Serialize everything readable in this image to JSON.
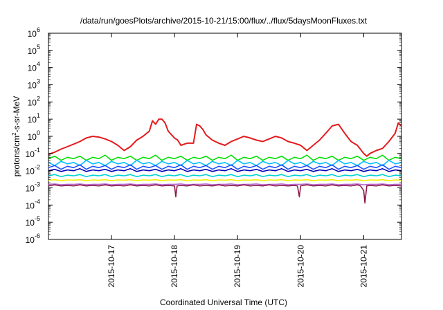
{
  "chart_data": {
    "type": "line",
    "title": "/data/run/goesPlots/archive/2015-10-21/15:00/flux/../flux/5daysMoonFluxes.txt",
    "xlabel": "Coordinated Universal Time (UTC)",
    "ylabel": {
      "pre": "protons/cm",
      "sup": "2",
      "post": "-s-sr-MeV"
    },
    "y_scale": "log",
    "ylim": [
      1e-06,
      1000000.0
    ],
    "y_ticks": [
      {
        "value": 1e-06,
        "base": "10",
        "exp": "-6"
      },
      {
        "value": 1e-05,
        "base": "10",
        "exp": "-5"
      },
      {
        "value": 0.0001,
        "base": "10",
        "exp": "-4"
      },
      {
        "value": 0.001,
        "base": "10",
        "exp": "-3"
      },
      {
        "value": 0.01,
        "base": "10",
        "exp": "-2"
      },
      {
        "value": 0.1,
        "base": "10",
        "exp": "-1"
      },
      {
        "value": 1,
        "base": "10",
        "exp": "0"
      },
      {
        "value": 10,
        "base": "10",
        "exp": "1"
      },
      {
        "value": 100,
        "base": "10",
        "exp": "2"
      },
      {
        "value": 1000,
        "base": "10",
        "exp": "3"
      },
      {
        "value": 10000,
        "base": "10",
        "exp": "4"
      },
      {
        "value": 100000,
        "base": "10",
        "exp": "5"
      },
      {
        "value": 1000000,
        "base": "10",
        "exp": "6"
      }
    ],
    "xlim": [
      0,
      5.6
    ],
    "x_ticks": [
      {
        "value": 1,
        "label": "2015-10-17"
      },
      {
        "value": 2,
        "label": "2015-10-18"
      },
      {
        "value": 3,
        "label": "2015-10-19"
      },
      {
        "value": 4,
        "label": "2015-10-20"
      },
      {
        "value": 5,
        "label": "2015-10-21"
      }
    ],
    "grid": false,
    "series": [
      {
        "color": "#e41a1c",
        "x": [
          0,
          0.1,
          0.2,
          0.3,
          0.4,
          0.5,
          0.6,
          0.7,
          0.8,
          0.9,
          1.0,
          1.1,
          1.2,
          1.3,
          1.4,
          1.5,
          1.6,
          1.65,
          1.7,
          1.75,
          1.8,
          1.85,
          1.9,
          2.0,
          2.05,
          2.1,
          2.2,
          2.3,
          2.35,
          2.4,
          2.45,
          2.5,
          2.6,
          2.7,
          2.8,
          2.9,
          3.0,
          3.1,
          3.2,
          3.3,
          3.4,
          3.5,
          3.6,
          3.7,
          3.8,
          3.9,
          4.0,
          4.1,
          4.2,
          4.3,
          4.4,
          4.5,
          4.6,
          4.7,
          4.8,
          4.9,
          5.0,
          5.05,
          5.1,
          5.2,
          5.3,
          5.4,
          5.5,
          5.55,
          5.6
        ],
        "y": [
          0.09,
          0.12,
          0.18,
          0.25,
          0.35,
          0.5,
          0.8,
          1.0,
          0.9,
          0.7,
          0.5,
          0.3,
          0.15,
          0.25,
          0.6,
          1.0,
          2.0,
          8.0,
          5.0,
          10.0,
          10.0,
          6.0,
          2.0,
          0.8,
          0.6,
          0.3,
          0.4,
          0.4,
          5.0,
          4.0,
          2.5,
          1.2,
          0.6,
          0.4,
          0.3,
          0.5,
          0.7,
          1.0,
          0.8,
          0.6,
          0.5,
          0.7,
          1.0,
          0.8,
          0.5,
          0.4,
          0.3,
          0.15,
          0.3,
          0.6,
          1.5,
          4.0,
          5.0,
          1.5,
          0.5,
          0.3,
          0.1,
          0.07,
          0.1,
          0.15,
          0.2,
          0.5,
          1.5,
          6.0,
          4.0
        ]
      },
      {
        "color": "#00e000",
        "x": [
          0,
          0.1,
          0.2,
          0.3,
          0.4,
          0.5,
          0.6,
          0.7,
          0.8,
          0.9,
          1.0,
          1.1,
          1.2,
          1.3,
          1.4,
          1.5,
          1.6,
          1.7,
          1.8,
          1.9,
          2.0,
          2.1,
          2.2,
          2.3,
          2.4,
          2.5,
          2.6,
          2.7,
          2.8,
          2.9,
          3.0,
          3.1,
          3.2,
          3.3,
          3.4,
          3.5,
          3.6,
          3.7,
          3.8,
          3.9,
          4.0,
          4.1,
          4.2,
          4.3,
          4.4,
          4.5,
          4.6,
          4.7,
          4.8,
          4.9,
          5.0,
          5.1,
          5.2,
          5.3,
          5.4,
          5.5,
          5.6
        ],
        "y": [
          0.05,
          0.07,
          0.04,
          0.06,
          0.05,
          0.07,
          0.04,
          0.06,
          0.05,
          0.08,
          0.04,
          0.06,
          0.05,
          0.07,
          0.04,
          0.06,
          0.05,
          0.08,
          0.04,
          0.06,
          0.05,
          0.07,
          0.04,
          0.06,
          0.05,
          0.07,
          0.04,
          0.06,
          0.05,
          0.08,
          0.04,
          0.06,
          0.05,
          0.07,
          0.04,
          0.06,
          0.05,
          0.07,
          0.04,
          0.06,
          0.05,
          0.08,
          0.04,
          0.06,
          0.05,
          0.07,
          0.04,
          0.06,
          0.05,
          0.07,
          0.04,
          0.06,
          0.05,
          0.08,
          0.04,
          0.06,
          0.05
        ]
      },
      {
        "color": "#00bfff",
        "x": [
          0,
          0.1,
          0.2,
          0.3,
          0.4,
          0.5,
          0.6,
          0.7,
          0.8,
          0.9,
          1.0,
          1.1,
          1.2,
          1.3,
          1.4,
          1.5,
          1.6,
          1.7,
          1.8,
          1.9,
          2.0,
          2.1,
          2.2,
          2.3,
          2.4,
          2.5,
          2.6,
          2.7,
          2.8,
          2.9,
          3.0,
          3.1,
          3.2,
          3.3,
          3.4,
          3.5,
          3.6,
          3.7,
          3.8,
          3.9,
          4.0,
          4.1,
          4.2,
          4.3,
          4.4,
          4.5,
          4.6,
          4.7,
          4.8,
          4.9,
          5.0,
          5.1,
          5.2,
          5.3,
          5.4,
          5.5,
          5.6
        ],
        "y": [
          0.03,
          0.02,
          0.035,
          0.025,
          0.03,
          0.02,
          0.04,
          0.025,
          0.03,
          0.02,
          0.035,
          0.025,
          0.03,
          0.02,
          0.04,
          0.025,
          0.03,
          0.02,
          0.035,
          0.025,
          0.03,
          0.02,
          0.04,
          0.025,
          0.03,
          0.02,
          0.035,
          0.025,
          0.03,
          0.02,
          0.04,
          0.025,
          0.03,
          0.02,
          0.035,
          0.025,
          0.03,
          0.02,
          0.04,
          0.025,
          0.03,
          0.02,
          0.035,
          0.025,
          0.03,
          0.02,
          0.04,
          0.025,
          0.03,
          0.02,
          0.035,
          0.025,
          0.03,
          0.02,
          0.04,
          0.025,
          0.03
        ]
      },
      {
        "color": "#1e50ff",
        "x": [
          0,
          0.1,
          0.2,
          0.3,
          0.4,
          0.5,
          0.6,
          0.7,
          0.8,
          0.9,
          1.0,
          1.1,
          1.2,
          1.3,
          1.4,
          1.5,
          1.6,
          1.7,
          1.8,
          1.9,
          2.0,
          2.1,
          2.2,
          2.3,
          2.4,
          2.5,
          2.6,
          2.7,
          2.8,
          2.9,
          3.0,
          3.1,
          3.2,
          3.3,
          3.4,
          3.5,
          3.6,
          3.7,
          3.8,
          3.9,
          4.0,
          4.1,
          4.2,
          4.3,
          4.4,
          4.5,
          4.6,
          4.7,
          4.8,
          4.9,
          5.0,
          5.1,
          5.2,
          5.3,
          5.4,
          5.5,
          5.6
        ],
        "y": [
          0.015,
          0.02,
          0.012,
          0.018,
          0.015,
          0.022,
          0.012,
          0.018,
          0.015,
          0.02,
          0.012,
          0.018,
          0.015,
          0.022,
          0.012,
          0.018,
          0.015,
          0.02,
          0.012,
          0.018,
          0.015,
          0.022,
          0.012,
          0.018,
          0.015,
          0.02,
          0.012,
          0.018,
          0.015,
          0.022,
          0.012,
          0.018,
          0.015,
          0.02,
          0.012,
          0.018,
          0.015,
          0.022,
          0.012,
          0.018,
          0.015,
          0.02,
          0.012,
          0.018,
          0.015,
          0.022,
          0.012,
          0.018,
          0.015,
          0.02,
          0.012,
          0.018,
          0.015,
          0.022,
          0.012,
          0.018,
          0.015
        ]
      },
      {
        "color": "#0000b4",
        "x": [
          0,
          0.1,
          0.2,
          0.3,
          0.4,
          0.5,
          0.6,
          0.7,
          0.8,
          0.9,
          1.0,
          1.1,
          1.2,
          1.3,
          1.4,
          1.5,
          1.6,
          1.7,
          1.8,
          1.9,
          2.0,
          2.1,
          2.2,
          2.3,
          2.4,
          2.5,
          2.6,
          2.7,
          2.8,
          2.9,
          3.0,
          3.1,
          3.2,
          3.3,
          3.4,
          3.5,
          3.6,
          3.7,
          3.8,
          3.9,
          4.0,
          4.1,
          4.2,
          4.3,
          4.4,
          4.5,
          4.6,
          4.7,
          4.8,
          4.9,
          5.0,
          5.1,
          5.2,
          5.3,
          5.4,
          5.5,
          5.6
        ],
        "y": [
          0.01,
          0.012,
          0.009,
          0.011,
          0.01,
          0.013,
          0.009,
          0.011,
          0.01,
          0.012,
          0.009,
          0.011,
          0.01,
          0.013,
          0.009,
          0.011,
          0.01,
          0.012,
          0.009,
          0.011,
          0.01,
          0.013,
          0.009,
          0.011,
          0.01,
          0.012,
          0.009,
          0.011,
          0.01,
          0.013,
          0.009,
          0.011,
          0.01,
          0.012,
          0.009,
          0.011,
          0.01,
          0.013,
          0.009,
          0.011,
          0.01,
          0.012,
          0.009,
          0.011,
          0.01,
          0.013,
          0.009,
          0.011,
          0.01,
          0.012,
          0.009,
          0.011,
          0.01,
          0.013,
          0.009,
          0.011,
          0.01
        ]
      },
      {
        "color": "#00d2d2",
        "x": [
          0,
          0.1,
          0.2,
          0.3,
          0.4,
          0.5,
          0.6,
          0.7,
          0.8,
          0.9,
          1.0,
          1.1,
          1.2,
          1.3,
          1.4,
          1.5,
          1.6,
          1.7,
          1.8,
          1.9,
          2.0,
          2.1,
          2.2,
          2.3,
          2.4,
          2.5,
          2.6,
          2.7,
          2.8,
          2.9,
          3.0,
          3.1,
          3.2,
          3.3,
          3.4,
          3.5,
          3.6,
          3.7,
          3.8,
          3.9,
          4.0,
          4.1,
          4.2,
          4.3,
          4.4,
          4.5,
          4.6,
          4.7,
          4.8,
          4.9,
          5.0,
          5.1,
          5.2,
          5.3,
          5.4,
          5.5,
          5.6
        ],
        "y": [
          0.005,
          0.006,
          0.0045,
          0.0055,
          0.005,
          0.006,
          0.0045,
          0.0055,
          0.005,
          0.006,
          0.0045,
          0.0055,
          0.005,
          0.006,
          0.0045,
          0.0055,
          0.005,
          0.006,
          0.0045,
          0.0055,
          0.005,
          0.006,
          0.0045,
          0.0055,
          0.005,
          0.006,
          0.0045,
          0.0055,
          0.005,
          0.006,
          0.0045,
          0.0055,
          0.005,
          0.006,
          0.0045,
          0.0055,
          0.005,
          0.006,
          0.0045,
          0.0055,
          0.005,
          0.006,
          0.0045,
          0.0055,
          0.005,
          0.006,
          0.0045,
          0.0055,
          0.005,
          0.006,
          0.0045,
          0.0055,
          0.005,
          0.006,
          0.0045,
          0.0055,
          0.005
        ]
      },
      {
        "color": "#f0f000",
        "x": [
          0,
          0.1,
          0.2,
          0.3,
          0.4,
          0.5,
          0.6,
          0.7,
          0.8,
          0.9,
          1.0,
          1.1,
          1.2,
          1.3,
          1.4,
          1.5,
          1.6,
          1.7,
          1.8,
          1.9,
          2.0,
          2.1,
          2.2,
          2.3,
          2.4,
          2.5,
          2.6,
          2.7,
          2.8,
          2.9,
          3.0,
          3.1,
          3.2,
          3.3,
          3.4,
          3.5,
          3.6,
          3.7,
          3.8,
          3.9,
          4.0,
          4.1,
          4.2,
          4.3,
          4.4,
          4.5,
          4.6,
          4.7,
          4.8,
          4.9,
          5.0,
          5.1,
          5.2,
          5.3,
          5.4,
          5.5,
          5.6
        ],
        "y": [
          0.0028,
          0.003,
          0.0026,
          0.0029,
          0.0028,
          0.003,
          0.0026,
          0.0029,
          0.0028,
          0.003,
          0.0026,
          0.0029,
          0.0028,
          0.003,
          0.0026,
          0.0029,
          0.0028,
          0.003,
          0.0026,
          0.0029,
          0.0028,
          0.003,
          0.0026,
          0.0029,
          0.0028,
          0.003,
          0.0026,
          0.0029,
          0.0028,
          0.003,
          0.0026,
          0.0029,
          0.0028,
          0.003,
          0.0026,
          0.0029,
          0.0028,
          0.003,
          0.0026,
          0.0029,
          0.0028,
          0.003,
          0.0026,
          0.0029,
          0.0028,
          0.003,
          0.0026,
          0.0029,
          0.0028,
          0.003,
          0.0026,
          0.0029,
          0.0028,
          0.003,
          0.0026,
          0.0029,
          0.0028
        ]
      },
      {
        "color": "#b86ad0",
        "x": [
          0,
          0.1,
          0.2,
          0.3,
          0.4,
          0.5,
          0.6,
          0.7,
          0.8,
          0.9,
          1.0,
          1.1,
          1.2,
          1.3,
          1.4,
          1.5,
          1.6,
          1.7,
          1.8,
          1.9,
          2.0,
          2.1,
          2.2,
          2.3,
          2.4,
          2.5,
          2.6,
          2.7,
          2.8,
          2.9,
          3.0,
          3.1,
          3.2,
          3.3,
          3.4,
          3.5,
          3.6,
          3.7,
          3.8,
          3.9,
          4.0,
          4.1,
          4.2,
          4.3,
          4.4,
          4.5,
          4.6,
          4.7,
          4.8,
          4.9,
          5.0,
          5.1,
          5.2,
          5.3,
          5.4,
          5.5,
          5.6
        ],
        "y": [
          0.0016,
          0.0017,
          0.0015,
          0.0016,
          0.0016,
          0.0017,
          0.0015,
          0.0016,
          0.0016,
          0.0017,
          0.0015,
          0.0016,
          0.0016,
          0.0017,
          0.0015,
          0.0016,
          0.0016,
          0.0017,
          0.0015,
          0.0016,
          0.0016,
          0.0017,
          0.0015,
          0.0016,
          0.0016,
          0.0017,
          0.0015,
          0.0016,
          0.0016,
          0.0017,
          0.0015,
          0.0016,
          0.0016,
          0.0017,
          0.0015,
          0.0016,
          0.0016,
          0.0017,
          0.0015,
          0.0016,
          0.0016,
          0.0017,
          0.0015,
          0.0016,
          0.0016,
          0.0017,
          0.0015,
          0.0016,
          0.0016,
          0.0017,
          0.0015,
          0.0016,
          0.0016,
          0.0017,
          0.0015,
          0.0016,
          0.0016
        ]
      },
      {
        "color": "#8b1a4a",
        "x": [
          0,
          0.1,
          0.2,
          0.3,
          0.4,
          0.5,
          0.6,
          0.7,
          0.8,
          0.9,
          1.0,
          1.1,
          1.2,
          1.3,
          1.4,
          1.5,
          1.6,
          1.7,
          1.8,
          1.9,
          2.0,
          2.02,
          2.04,
          2.1,
          2.2,
          2.3,
          2.4,
          2.5,
          2.6,
          2.7,
          2.8,
          2.9,
          3.0,
          3.1,
          3.2,
          3.3,
          3.4,
          3.5,
          3.6,
          3.7,
          3.8,
          3.9,
          3.95,
          3.98,
          4.0,
          4.1,
          4.2,
          4.3,
          4.4,
          4.5,
          4.6,
          4.7,
          4.8,
          4.9,
          4.95,
          5.0,
          5.02,
          5.05,
          5.1,
          5.2,
          5.3,
          5.4,
          5.5,
          5.6
        ],
        "y": [
          0.0013,
          0.0015,
          0.0013,
          0.0014,
          0.0013,
          0.0015,
          0.0013,
          0.0014,
          0.0013,
          0.0015,
          0.0013,
          0.0014,
          0.0013,
          0.0015,
          0.0013,
          0.0014,
          0.0013,
          0.0015,
          0.0013,
          0.0014,
          0.0013,
          0.0003,
          0.0013,
          0.0014,
          0.0013,
          0.0015,
          0.0013,
          0.0014,
          0.0013,
          0.0015,
          0.0013,
          0.0014,
          0.0013,
          0.0015,
          0.0013,
          0.0014,
          0.0013,
          0.0015,
          0.0013,
          0.0014,
          0.0013,
          0.0014,
          0.0013,
          0.0003,
          0.0013,
          0.0015,
          0.0013,
          0.0014,
          0.0013,
          0.0015,
          0.0013,
          0.0014,
          0.0013,
          0.0015,
          0.0013,
          0.0007,
          0.00013,
          0.0013,
          0.0014,
          0.0013,
          0.0015,
          0.0013,
          0.0014,
          0.0013
        ]
      }
    ]
  }
}
